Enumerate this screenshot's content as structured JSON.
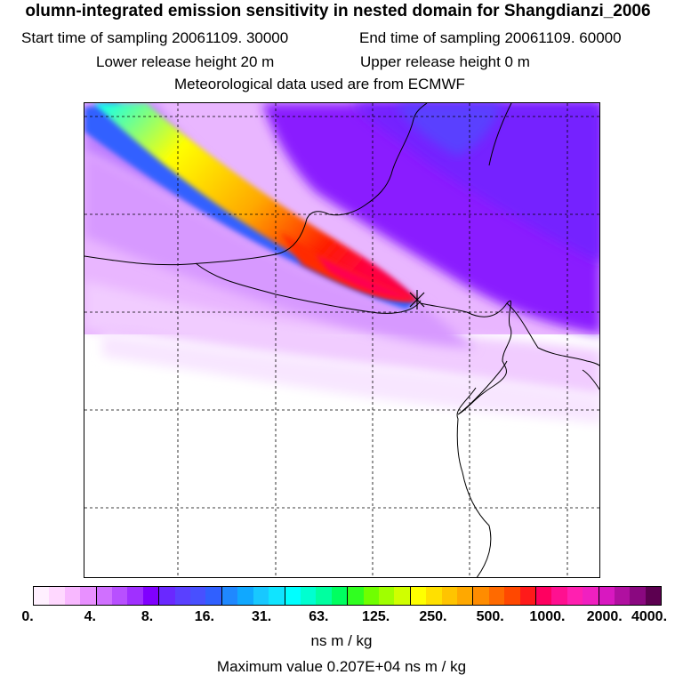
{
  "header": {
    "title": "olumn-integrated emission sensitivity in nested domain for Shangdianzi_2006",
    "start_label": "Start time of sampling 20061109. 30000",
    "end_label": "End time of sampling 20061109. 60000",
    "lower_label": "Lower release height   20 m",
    "upper_label": "Upper release height    0 m",
    "met_label": "Meteorological data used are from ECMWF"
  },
  "colorbar": {
    "tick_labels": [
      "0.",
      "4.",
      "8.",
      "16.",
      "31.",
      "63.",
      "125.",
      "250.",
      "500.",
      "1000.",
      "2000.",
      "4000."
    ],
    "colors": [
      "#fff0ff",
      "#ffd8ff",
      "#f8b8ff",
      "#e890ff",
      "#d070ff",
      "#b850ff",
      "#a030ff",
      "#8000ff",
      "#6a28ff",
      "#5a40ff",
      "#4850ff",
      "#3060ff",
      "#1f88ff",
      "#10a8ff",
      "#18c8ff",
      "#10e4ff",
      "#00ffff",
      "#00ffd0",
      "#00ffa0",
      "#00ff60",
      "#30ff20",
      "#70ff00",
      "#a0ff00",
      "#d0ff00",
      "#ffff00",
      "#ffe000",
      "#ffc400",
      "#ffa800",
      "#ff8c00",
      "#ff6a00",
      "#ff4800",
      "#ff1a1a",
      "#ff0060",
      "#ff1090",
      "#ff20b0",
      "#f020c0",
      "#d818c0",
      "#b010a0",
      "#8a0880",
      "#5c0050"
    ],
    "units": "ns m / kg",
    "max_value_text": "Maximum value  0.207E+04 ns m / kg"
  },
  "map": {
    "release_marker": "release-point-icon"
  }
}
